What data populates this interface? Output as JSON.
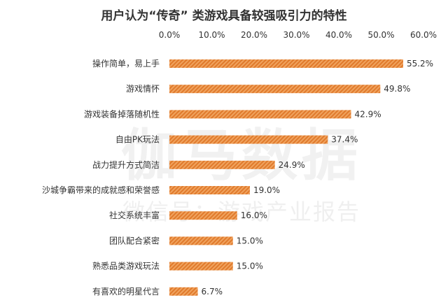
{
  "chart_data": {
    "type": "bar",
    "orientation": "horizontal",
    "title": "用户认为“传奇” 类游戏具备较强吸引力的特性",
    "categories": [
      "操作简单，易上手",
      "游戏情怀",
      "游戏装备掉落随机性",
      "自由PK玩法",
      "战力提升方式简洁",
      "沙城争霸带来的成就感和荣誉感",
      "社交系统丰富",
      "团队配合紧密",
      "熟悉品类游戏玩法",
      "有喜欢的明星代言"
    ],
    "values": [
      55.2,
      49.8,
      42.9,
      37.4,
      24.9,
      19.0,
      16.0,
      15.0,
      15.0,
      6.7
    ],
    "value_labels": [
      "55.2%",
      "49.8%",
      "42.9%",
      "37.4%",
      "24.9%",
      "19.0%",
      "16.0%",
      "15.0%",
      "15.0%",
      "6.7%"
    ],
    "ticks": [
      0,
      10,
      20,
      30,
      40,
      50,
      60
    ],
    "tick_labels": [
      "0.0%",
      "10.0%",
      "20.0%",
      "30.0%",
      "40.0%",
      "50.0%",
      "60.0%"
    ],
    "xlim": [
      0,
      60
    ],
    "axis_position": "top",
    "grid": false,
    "bar_color": "#f0a35e",
    "bar_stripe_color": "#e07a2c"
  },
  "watermark": {
    "line1": "伽马数据",
    "line2": "微信号：游戏产业报告"
  }
}
